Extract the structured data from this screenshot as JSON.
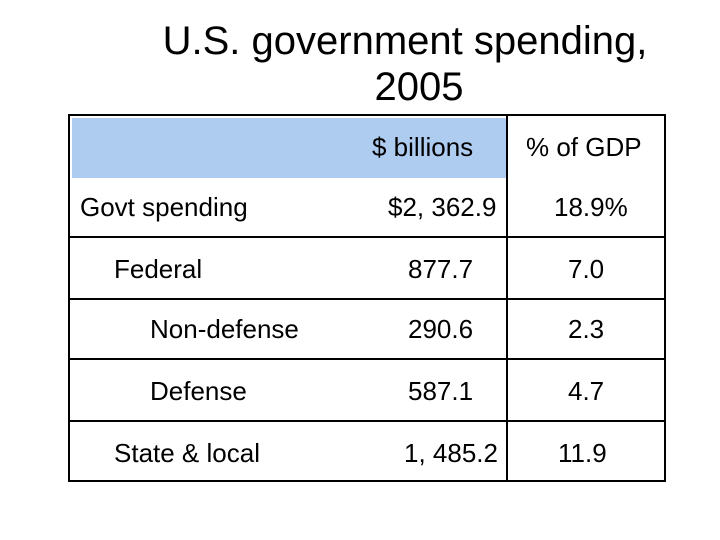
{
  "title": {
    "line1": "U.S. government spending,",
    "line2": "2005"
  },
  "table": {
    "headers": [
      "",
      "$ billions",
      "% of GDP"
    ],
    "rows": [
      {
        "label": "Govt spending",
        "billions": "$2, 362.9",
        "pct_gdp": "18.9%"
      },
      {
        "label": "Federal",
        "billions": "877.7",
        "pct_gdp": "7.0"
      },
      {
        "label": "Non-defense",
        "billions": "290.6",
        "pct_gdp": "2.3"
      },
      {
        "label": "Defense",
        "billions": "587.1",
        "pct_gdp": "4.7"
      },
      {
        "label": "State & local",
        "billions": "1, 485.2",
        "pct_gdp": "11.9"
      }
    ]
  },
  "colors": {
    "header_fill": "#aecbf0",
    "row_fill": "#d0e0f5",
    "border": "#000000"
  }
}
